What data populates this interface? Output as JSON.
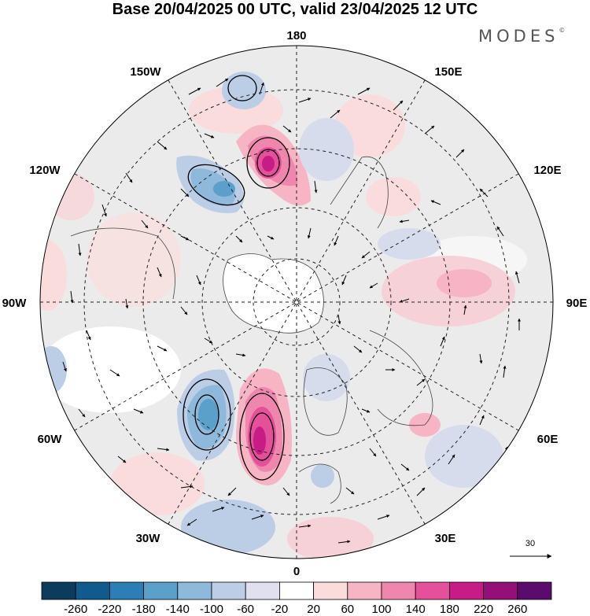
{
  "title": "Base 20/04/2025 00 UTC, valid 23/04/2025 12 UTC",
  "logo": "MODES",
  "logo_mark": "©",
  "longitude_labels": [
    "180",
    "150E",
    "120E",
    "90E",
    "60E",
    "30E",
    "0",
    "30W",
    "60W",
    "90W",
    "120W",
    "150W"
  ],
  "reference_vector": {
    "label": "30"
  },
  "colorbar": {
    "colors": [
      "#0c3b5c",
      "#0f5b8e",
      "#2b7fb5",
      "#5aa0cb",
      "#8eb9da",
      "#bccde6",
      "#e0e0ef",
      "#ffffff",
      "#fadcdc",
      "#f6b4c4",
      "#ef86ae",
      "#e4509a",
      "#c71b85",
      "#941078",
      "#5a0b6b"
    ],
    "ticks": [
      "-260",
      "-220",
      "-180",
      "-140",
      "-100",
      "-60",
      "-20",
      "20",
      "60",
      "100",
      "140",
      "180",
      "220",
      "260"
    ]
  },
  "colors": {
    "neutral_fill": "#ebebeb",
    "graticule": "#222222",
    "coastline": "#444444"
  }
}
